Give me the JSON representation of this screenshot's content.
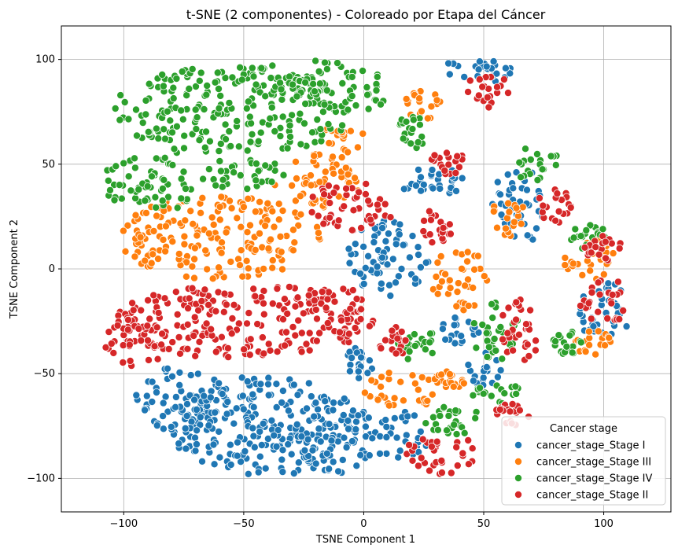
{
  "chart_data": {
    "type": "scatter",
    "title": "t-SNE (2 componentes) - Coloreado por Etapa del Cáncer",
    "xlabel": "TSNE Component 1",
    "ylabel": "TSNE Component 2",
    "xlim": [
      -126,
      128
    ],
    "ylim": [
      -116,
      116
    ],
    "xticks": [
      -100,
      -50,
      0,
      50,
      100
    ],
    "yticks": [
      -100,
      -50,
      0,
      50,
      100
    ],
    "xtick_labels": [
      "−100",
      "−50",
      "0",
      "50",
      "100"
    ],
    "ytick_labels": [
      "−100",
      "−50",
      "0",
      "50",
      "100"
    ],
    "grid": true,
    "legend": {
      "title": "Cancer stage",
      "placement": "lower-right"
    },
    "series": [
      {
        "name": "cancer_stage_Stage I",
        "color": "#1f77b4",
        "clusters": [
          {
            "cx": -40,
            "cy": -75,
            "rx": 42,
            "ry": 24
          },
          {
            "cx": -75,
            "cy": -62,
            "rx": 20,
            "ry": 16
          },
          {
            "cx": -12,
            "cy": -80,
            "rx": 18,
            "ry": 18
          },
          {
            "cx": 10,
            "cy": 5,
            "rx": 17,
            "ry": 18
          },
          {
            "cx": 15,
            "cy": -80,
            "rx": 12,
            "ry": 12
          },
          {
            "cx": 48,
            "cy": 95,
            "rx": 15,
            "ry": 7
          },
          {
            "cx": 65,
            "cy": 30,
            "rx": 12,
            "ry": 18
          },
          {
            "cx": 30,
            "cy": 40,
            "rx": 14,
            "ry": 10
          },
          {
            "cx": 40,
            "cy": -30,
            "rx": 8,
            "ry": 8
          },
          {
            "cx": 50,
            "cy": -48,
            "rx": 8,
            "ry": 8
          },
          {
            "cx": -2,
            "cy": -45,
            "rx": 6,
            "ry": 8
          },
          {
            "cx": 100,
            "cy": -20,
            "rx": 12,
            "ry": 14
          }
        ]
      },
      {
        "name": "cancer_stage_Stage III",
        "color": "#ff7f0e",
        "clusters": [
          {
            "cx": -60,
            "cy": 15,
            "rx": 42,
            "ry": 20
          },
          {
            "cx": -20,
            "cy": 40,
            "rx": 18,
            "ry": 15
          },
          {
            "cx": -10,
            "cy": 60,
            "rx": 12,
            "ry": 8
          },
          {
            "cx": 15,
            "cy": -58,
            "rx": 15,
            "ry": 10
          },
          {
            "cx": 35,
            "cy": -52,
            "rx": 8,
            "ry": 6
          },
          {
            "cx": 40,
            "cy": -5,
            "rx": 12,
            "ry": 15
          },
          {
            "cx": 25,
            "cy": 78,
            "rx": 8,
            "ry": 8
          },
          {
            "cx": 60,
            "cy": 25,
            "rx": 8,
            "ry": 10
          },
          {
            "cx": 95,
            "cy": 5,
            "rx": 12,
            "ry": 10
          },
          {
            "cx": 95,
            "cy": -35,
            "rx": 8,
            "ry": 6
          }
        ]
      },
      {
        "name": "cancer_stage_Stage IV",
        "color": "#2ca02c",
        "clusters": [
          {
            "cx": -55,
            "cy": 75,
            "rx": 50,
            "ry": 22
          },
          {
            "cx": -90,
            "cy": 40,
            "rx": 20,
            "ry": 14
          },
          {
            "cx": -25,
            "cy": 92,
            "rx": 22,
            "ry": 10
          },
          {
            "cx": 0,
            "cy": 85,
            "rx": 10,
            "ry": 10
          },
          {
            "cx": -50,
            "cy": 45,
            "rx": 18,
            "ry": 8
          },
          {
            "cx": 35,
            "cy": -72,
            "rx": 15,
            "ry": 8
          },
          {
            "cx": 55,
            "cy": -58,
            "rx": 10,
            "ry": 8
          },
          {
            "cx": 55,
            "cy": -30,
            "rx": 10,
            "ry": 14
          },
          {
            "cx": 70,
            "cy": 50,
            "rx": 12,
            "ry": 8
          },
          {
            "cx": 20,
            "cy": 65,
            "rx": 6,
            "ry": 10
          },
          {
            "cx": 95,
            "cy": 15,
            "rx": 10,
            "ry": 6
          },
          {
            "cx": 22,
            "cy": -35,
            "rx": 8,
            "ry": 10
          },
          {
            "cx": 85,
            "cy": -35,
            "rx": 6,
            "ry": 6
          }
        ]
      },
      {
        "name": "cancer_stage_Stage II",
        "color": "#d62728",
        "clusters": [
          {
            "cx": -50,
            "cy": -25,
            "rx": 55,
            "ry": 18
          },
          {
            "cx": -95,
            "cy": -35,
            "rx": 14,
            "ry": 12
          },
          {
            "cx": -10,
            "cy": -20,
            "rx": 12,
            "ry": 12
          },
          {
            "cx": -5,
            "cy": 30,
            "rx": 18,
            "ry": 12
          },
          {
            "cx": 32,
            "cy": -88,
            "rx": 15,
            "ry": 10
          },
          {
            "cx": 12,
            "cy": -35,
            "rx": 6,
            "ry": 8
          },
          {
            "cx": 65,
            "cy": -30,
            "rx": 8,
            "ry": 18
          },
          {
            "cx": 35,
            "cy": 50,
            "rx": 8,
            "ry": 6
          },
          {
            "cx": 30,
            "cy": 20,
            "rx": 8,
            "ry": 8
          },
          {
            "cx": 62,
            "cy": -70,
            "rx": 8,
            "ry": 6
          },
          {
            "cx": 52,
            "cy": 85,
            "rx": 10,
            "ry": 8
          },
          {
            "cx": 80,
            "cy": 30,
            "rx": 8,
            "ry": 8
          },
          {
            "cx": 100,
            "cy": -15,
            "rx": 10,
            "ry": 12
          },
          {
            "cx": 100,
            "cy": 10,
            "rx": 8,
            "ry": 6
          }
        ]
      }
    ]
  }
}
